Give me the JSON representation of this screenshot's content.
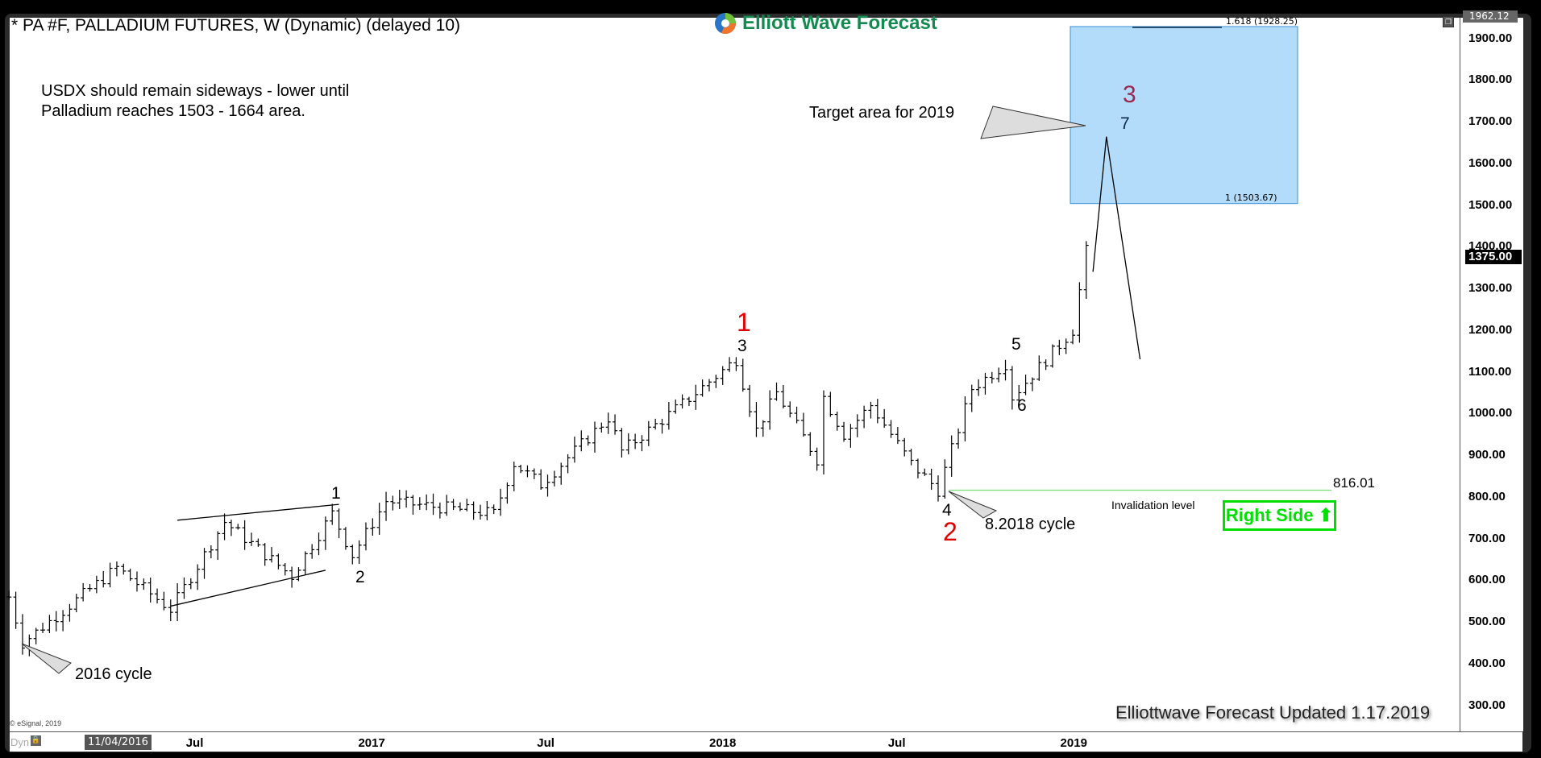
{
  "header": {
    "title": "* PA #F, PALLADIUM FUTURES, W (Dynamic) (delayed 10)",
    "logo_text": "Elliott Wave Forecast",
    "restore_icon": "window-restore-icon"
  },
  "annotations": {
    "note_line1": "USDX should remain sideways - lower until",
    "note_line2": "Palladium reaches 1503 - 1664 area.",
    "target_label": "Target area for 2019",
    "fib_top": "1.618 (1928.25)",
    "fib_bottom": "1 (1503.67)",
    "wave_3_major": "3",
    "wave_7": "7",
    "wave_1_major": "1",
    "wave_3_minor": "3",
    "wave_5": "5",
    "wave_6": "6",
    "wave_4": "4",
    "wave_2_major": "2",
    "wave_1_minor": "1",
    "wave_2_minor": "2",
    "cycle_2016": "2016 cycle",
    "cycle_2018": "8.2018 cycle",
    "invalidation_label": "Invalidation level",
    "invalidation_value": "816.01",
    "right_side": "Right Side",
    "footer": "Elliottwave Forecast Updated 1.17.2019",
    "copyright": "© eSignal, 2019",
    "dyn": "Dyn",
    "cursor_date": "11/04/2016",
    "top_price_tag": "1962.12",
    "last_price_tag": "1375.00"
  },
  "colors": {
    "target_box": "#b3dcfb",
    "invalidation_line": "#7ee07e",
    "right_side": "#00e000",
    "wave_major_red": "#e00000",
    "wave_major_maroon": "#a0254e",
    "logo": "#138a4f"
  },
  "chart_data": {
    "type": "ohlc-bar",
    "interval": "weekly",
    "ylim": [
      250,
      1962.12
    ],
    "yticks": [
      "1900.00",
      "1800.00",
      "1700.00",
      "1600.00",
      "1500.00",
      "1400.00",
      "1300.00",
      "1200.00",
      "1100.00",
      "1000.00",
      "900.00",
      "800.00",
      "700.00",
      "600.00",
      "500.00",
      "400.00",
      "300.00"
    ],
    "xticks": [
      "Jul",
      "2017",
      "Jul",
      "2018",
      "Jul",
      "2019"
    ],
    "xtick_dates": [
      "2016-07-01",
      "2017-01-01",
      "2017-07-01",
      "2018-01-01",
      "2018-07-01",
      "2019-01-01"
    ],
    "price_path_approx": [
      [
        "2015-12-21",
        560
      ],
      [
        "2016-01-04",
        450
      ],
      [
        "2016-04-11",
        630
      ],
      [
        "2016-06-06",
        530
      ],
      [
        "2016-08-01",
        740
      ],
      [
        "2016-10-10",
        610
      ],
      [
        "2016-11-21",
        760
      ],
      [
        "2016-12-12",
        660
      ],
      [
        "2017-01-16",
        790
      ],
      [
        "2017-05-08",
        760
      ],
      [
        "2017-05-29",
        880
      ],
      [
        "2017-06-26",
        830
      ],
      [
        "2017-09-04",
        990
      ],
      [
        "2017-09-18",
        910
      ],
      [
        "2017-11-13",
        1010
      ],
      [
        "2018-01-15",
        1130
      ],
      [
        "2018-02-05",
        960
      ],
      [
        "2018-02-26",
        1050
      ],
      [
        "2018-04-09",
        890
      ],
      [
        "2018-04-16",
        1040
      ],
      [
        "2018-05-07",
        950
      ],
      [
        "2018-06-04",
        1020
      ],
      [
        "2018-07-16",
        880
      ],
      [
        "2018-08-13",
        816
      ],
      [
        "2018-09-17",
        1060
      ],
      [
        "2018-10-22",
        1120
      ],
      [
        "2018-10-29",
        1040
      ],
      [
        "2018-12-31",
        1200
      ],
      [
        "2019-01-14",
        1390
      ]
    ],
    "last_price": 1375.0,
    "target_zone": {
      "low": 1503.67,
      "high": 1928.25
    },
    "invalidation": 816.01,
    "projection": [
      [
        "2019-01-21",
        1340
      ],
      [
        "2019-02-04",
        1664
      ],
      [
        "2019-03-11",
        1130
      ]
    ],
    "wedge_upper": [
      [
        "2016-06-13",
        744
      ],
      [
        "2016-11-28",
        782
      ]
    ],
    "wedge_lower": [
      [
        "2016-06-06",
        538
      ],
      [
        "2016-11-14",
        624
      ]
    ]
  }
}
